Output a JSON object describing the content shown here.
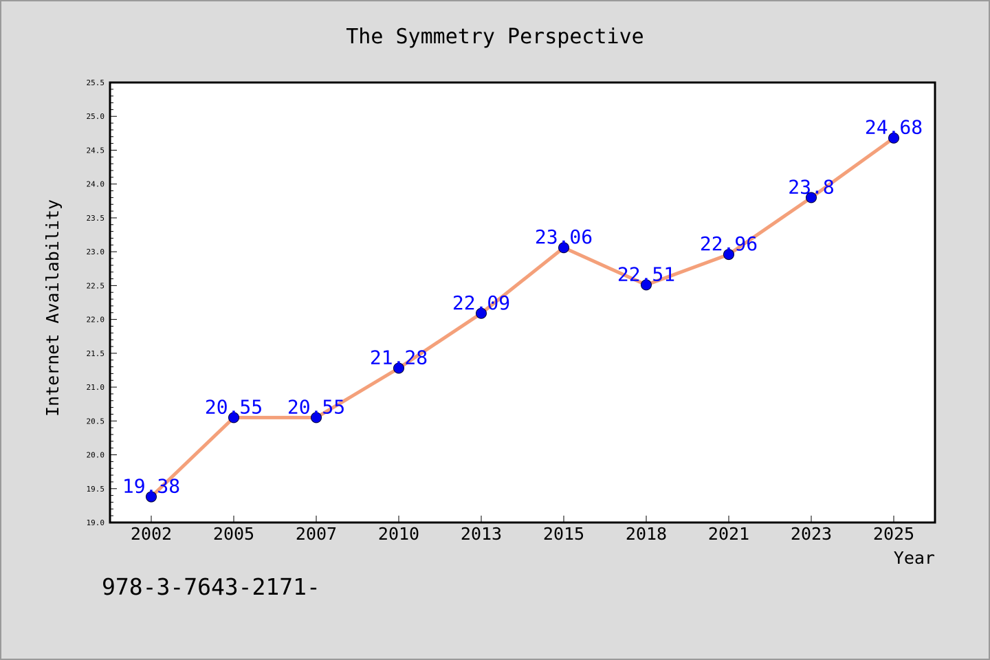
{
  "chart_data": {
    "type": "line",
    "title": "The Symmetry Perspective",
    "xlabel": "Year",
    "ylabel": "Internet Availability",
    "categories": [
      "2002",
      "2005",
      "2007",
      "2010",
      "2013",
      "2015",
      "2018",
      "2021",
      "2023",
      "2025"
    ],
    "series": [
      {
        "values": [
          19.38,
          20.55,
          20.55,
          21.28,
          22.09,
          23.06,
          22.51,
          22.96,
          23.8,
          24.68
        ],
        "labels": [
          "19.38",
          "20.55",
          "20.55",
          "21.28",
          "22.09",
          "23.06",
          "22.51",
          "22.96",
          "23.8",
          "24.68"
        ]
      }
    ],
    "ylim": [
      19.0,
      25.5
    ],
    "ytick_labels": [
      "19.0",
      "19.5",
      "20.0",
      "20.5",
      "21.0",
      "21.5",
      "22.0",
      "22.5",
      "23.0",
      "23.5",
      "24.0",
      "24.5",
      "25.0",
      "25.5"
    ],
    "grid": false,
    "legend": "none",
    "annotation": "978-3-7643-2171-",
    "colors": {
      "line": "#f4a07a",
      "marker": "#0000ee",
      "label": "#0000ff",
      "background": "#dcdcdc",
      "plot_area": "#ffffff"
    }
  }
}
